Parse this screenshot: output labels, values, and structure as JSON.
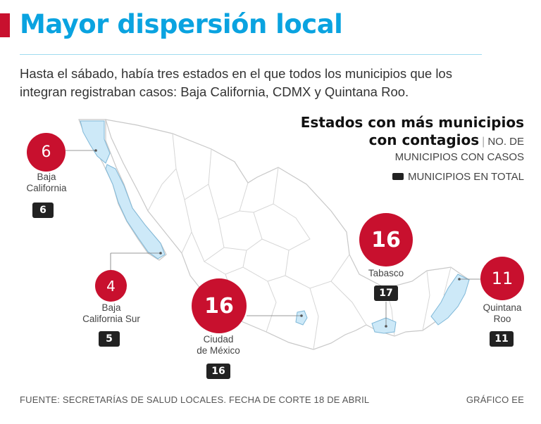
{
  "title": "Mayor dispersión local",
  "intro": "Hasta el sábado, había tres estados en el que todos los municipios que los integran registraban casos: Baja California, CDMX y Quintana Roo.",
  "legend": {
    "title_line1": "Estados con más municipios",
    "title_line2": "con contagios",
    "separator": "|",
    "sub1": "NO. DE",
    "sub2": "MUNICIPIOS CON CASOS",
    "key": "MUNICIPIOS EN TOTAL"
  },
  "states": [
    {
      "id": "baja-california",
      "name_line1": "Baja",
      "name_line2": "California",
      "with_cases": "6",
      "total": "6"
    },
    {
      "id": "baja-california-sur",
      "name_line1": "Baja",
      "name_line2": "California Sur",
      "with_cases": "4",
      "total": "5"
    },
    {
      "id": "ciudad-de-mexico",
      "name_line1": "Ciudad",
      "name_line2": "de México",
      "with_cases": "16",
      "total": "16"
    },
    {
      "id": "tabasco",
      "name_line1": "Tabasco",
      "name_line2": "",
      "with_cases": "16",
      "total": "17"
    },
    {
      "id": "quintana-roo",
      "name_line1": "Quintana",
      "name_line2": "Roo",
      "with_cases": "11",
      "total": "11"
    }
  ],
  "colors": {
    "accent_red": "#c8102e",
    "title_blue": "#0aa3e0",
    "highlight_fill": "#cde9f8",
    "badge": "#222222"
  },
  "footer": {
    "source": "FUENTE: SECRETARÍAS DE SALUD LOCALES. FECHA DE CORTE 18 DE ABRIL",
    "credit": "GRÁFICO EE"
  }
}
